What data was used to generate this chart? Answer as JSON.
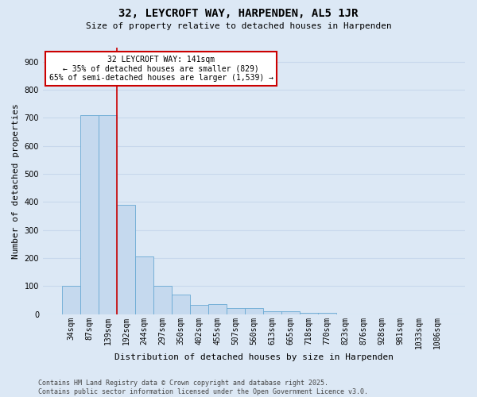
{
  "title_line1": "32, LEYCROFT WAY, HARPENDEN, AL5 1JR",
  "title_line2": "Size of property relative to detached houses in Harpenden",
  "xlabel": "Distribution of detached houses by size in Harpenden",
  "ylabel": "Number of detached properties",
  "categories": [
    "34sqm",
    "87sqm",
    "139sqm",
    "192sqm",
    "244sqm",
    "297sqm",
    "350sqm",
    "402sqm",
    "455sqm",
    "507sqm",
    "560sqm",
    "613sqm",
    "665sqm",
    "718sqm",
    "770sqm",
    "823sqm",
    "876sqm",
    "928sqm",
    "981sqm",
    "1033sqm",
    "1086sqm"
  ],
  "values": [
    100,
    710,
    710,
    390,
    205,
    100,
    70,
    33,
    35,
    20,
    20,
    10,
    10,
    5,
    5,
    0,
    0,
    0,
    0,
    0,
    0
  ],
  "bar_color": "#c5d9ee",
  "bar_edge_color": "#6aaad4",
  "background_color": "#dce8f5",
  "grid_color": "#c8d8ec",
  "property_line_index": 2.5,
  "annotation_text_line1": "32 LEYCROFT WAY: 141sqm",
  "annotation_text_line2": "← 35% of detached houses are smaller (829)",
  "annotation_text_line3": "65% of semi-detached houses are larger (1,539) →",
  "annotation_box_edgecolor": "#cc0000",
  "annotation_bg": "#ffffff",
  "ylim": [
    0,
    950
  ],
  "yticks": [
    0,
    100,
    200,
    300,
    400,
    500,
    600,
    700,
    800,
    900
  ],
  "footer_line1": "Contains HM Land Registry data © Crown copyright and database right 2025.",
  "footer_line2": "Contains public sector information licensed under the Open Government Licence v3.0.",
  "title1_fontsize": 10,
  "title2_fontsize": 8,
  "ylabel_fontsize": 8,
  "xlabel_fontsize": 8,
  "tick_fontsize": 7,
  "annot_fontsize": 7,
  "footer_fontsize": 6
}
